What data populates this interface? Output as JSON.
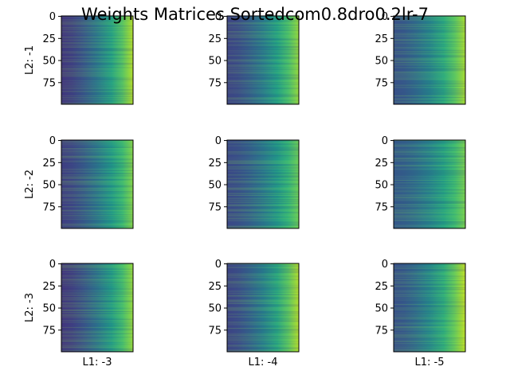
{
  "figure": {
    "title": "Weights Matrices Sortedcom0.8dro0.2lr-7"
  },
  "chart_data": {
    "type": "heatmap",
    "title": "Weights Matrices Sortedcom0.8dro0.2lr-7",
    "colormap": "viridis",
    "rows": 3,
    "cols": 3,
    "matrix_rows": 100,
    "y_ticks": [
      0,
      25,
      50,
      75
    ],
    "ylim": [
      0,
      99
    ],
    "row_labels": [
      "L2: -1",
      "L2: -2",
      "L2: -3"
    ],
    "col_labels": [
      "L1: -3",
      "L1: -4",
      "L1: -5"
    ],
    "panels": [
      {
        "row_label": "L2: -1",
        "col_label": "L1: -3",
        "value_range": [
          0.15,
          0.9
        ]
      },
      {
        "row_label": "L2: -1",
        "col_label": "L1: -4",
        "value_range": [
          0.2,
          0.85
        ]
      },
      {
        "row_label": "L2: -1",
        "col_label": "L1: -5",
        "value_range": [
          0.25,
          0.88
        ]
      },
      {
        "row_label": "L2: -2",
        "col_label": "L1: -3",
        "value_range": [
          0.18,
          0.82
        ]
      },
      {
        "row_label": "L2: -2",
        "col_label": "L1: -4",
        "value_range": [
          0.22,
          0.78
        ]
      },
      {
        "row_label": "L2: -2",
        "col_label": "L1: -5",
        "value_range": [
          0.28,
          0.8
        ]
      },
      {
        "row_label": "L2: -3",
        "col_label": "L1: -3",
        "value_range": [
          0.15,
          0.85
        ]
      },
      {
        "row_label": "L2: -3",
        "col_label": "L1: -4",
        "value_range": [
          0.2,
          0.9
        ]
      },
      {
        "row_label": "L2: -3",
        "col_label": "L1: -5",
        "value_range": [
          0.25,
          0.92
        ]
      }
    ]
  }
}
